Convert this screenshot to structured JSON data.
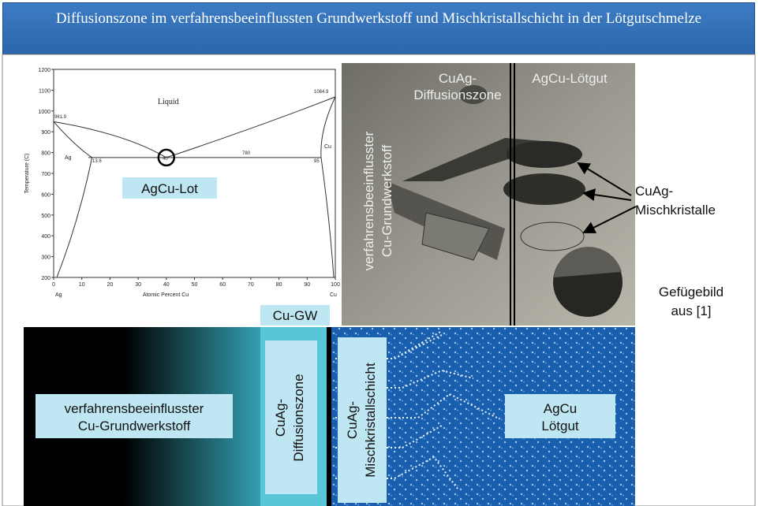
{
  "header": {
    "title": "Diffusionszone im verfahrensbeeinflussten Grundwerkstoff und Mischkristallschicht in der Lötgutschmelze"
  },
  "phase_diagram": {
    "y_axis_label": "Temperature (C)",
    "x_axis_label": "Atomic Percent Cu",
    "yticks": [
      "200",
      "300",
      "400",
      "500",
      "600",
      "700",
      "800",
      "900",
      "1000",
      "1100",
      "1200"
    ],
    "xticks": [
      "0",
      "10",
      "20",
      "30",
      "40",
      "50",
      "60",
      "70",
      "80",
      "90",
      "100"
    ],
    "x_end_labels": [
      "Ag",
      "Cu"
    ],
    "annotations": {
      "liquid": "Liquid",
      "ag_melt": "961.9",
      "cu_melt": "1084.9",
      "ag_phase": "Ag",
      "cu_phase": "Cu",
      "alpha_limit": "13.6",
      "eutectic": "40",
      "eutectic_temp": "780",
      "beta_limit": "95"
    },
    "overlay_label": "AgCu-Lot"
  },
  "cu_gw_label": "Cu-GW",
  "micrograph": {
    "diffusion_zone": [
      "CuAg-",
      "Diffusionszone"
    ],
    "solder": "AgCu-Lötgut",
    "base_material": [
      "verfahrensbeeinflusster",
      "Cu-Grundwerkstoff"
    ],
    "crystals": [
      "CuAg-",
      "Mischkristalle"
    ],
    "source": [
      "Gefügebild",
      "aus [1]"
    ]
  },
  "schematic": {
    "base_material": [
      "verfahrensbeeinflusster",
      "Cu-Grundwerkstoff"
    ],
    "diffusion_zone": [
      "CuAg-",
      "Diffusionszone"
    ],
    "crystal_layer": [
      "CuAg-",
      "Mischkristallschicht"
    ],
    "solder": [
      "AgCu",
      "Lötgut"
    ]
  }
}
